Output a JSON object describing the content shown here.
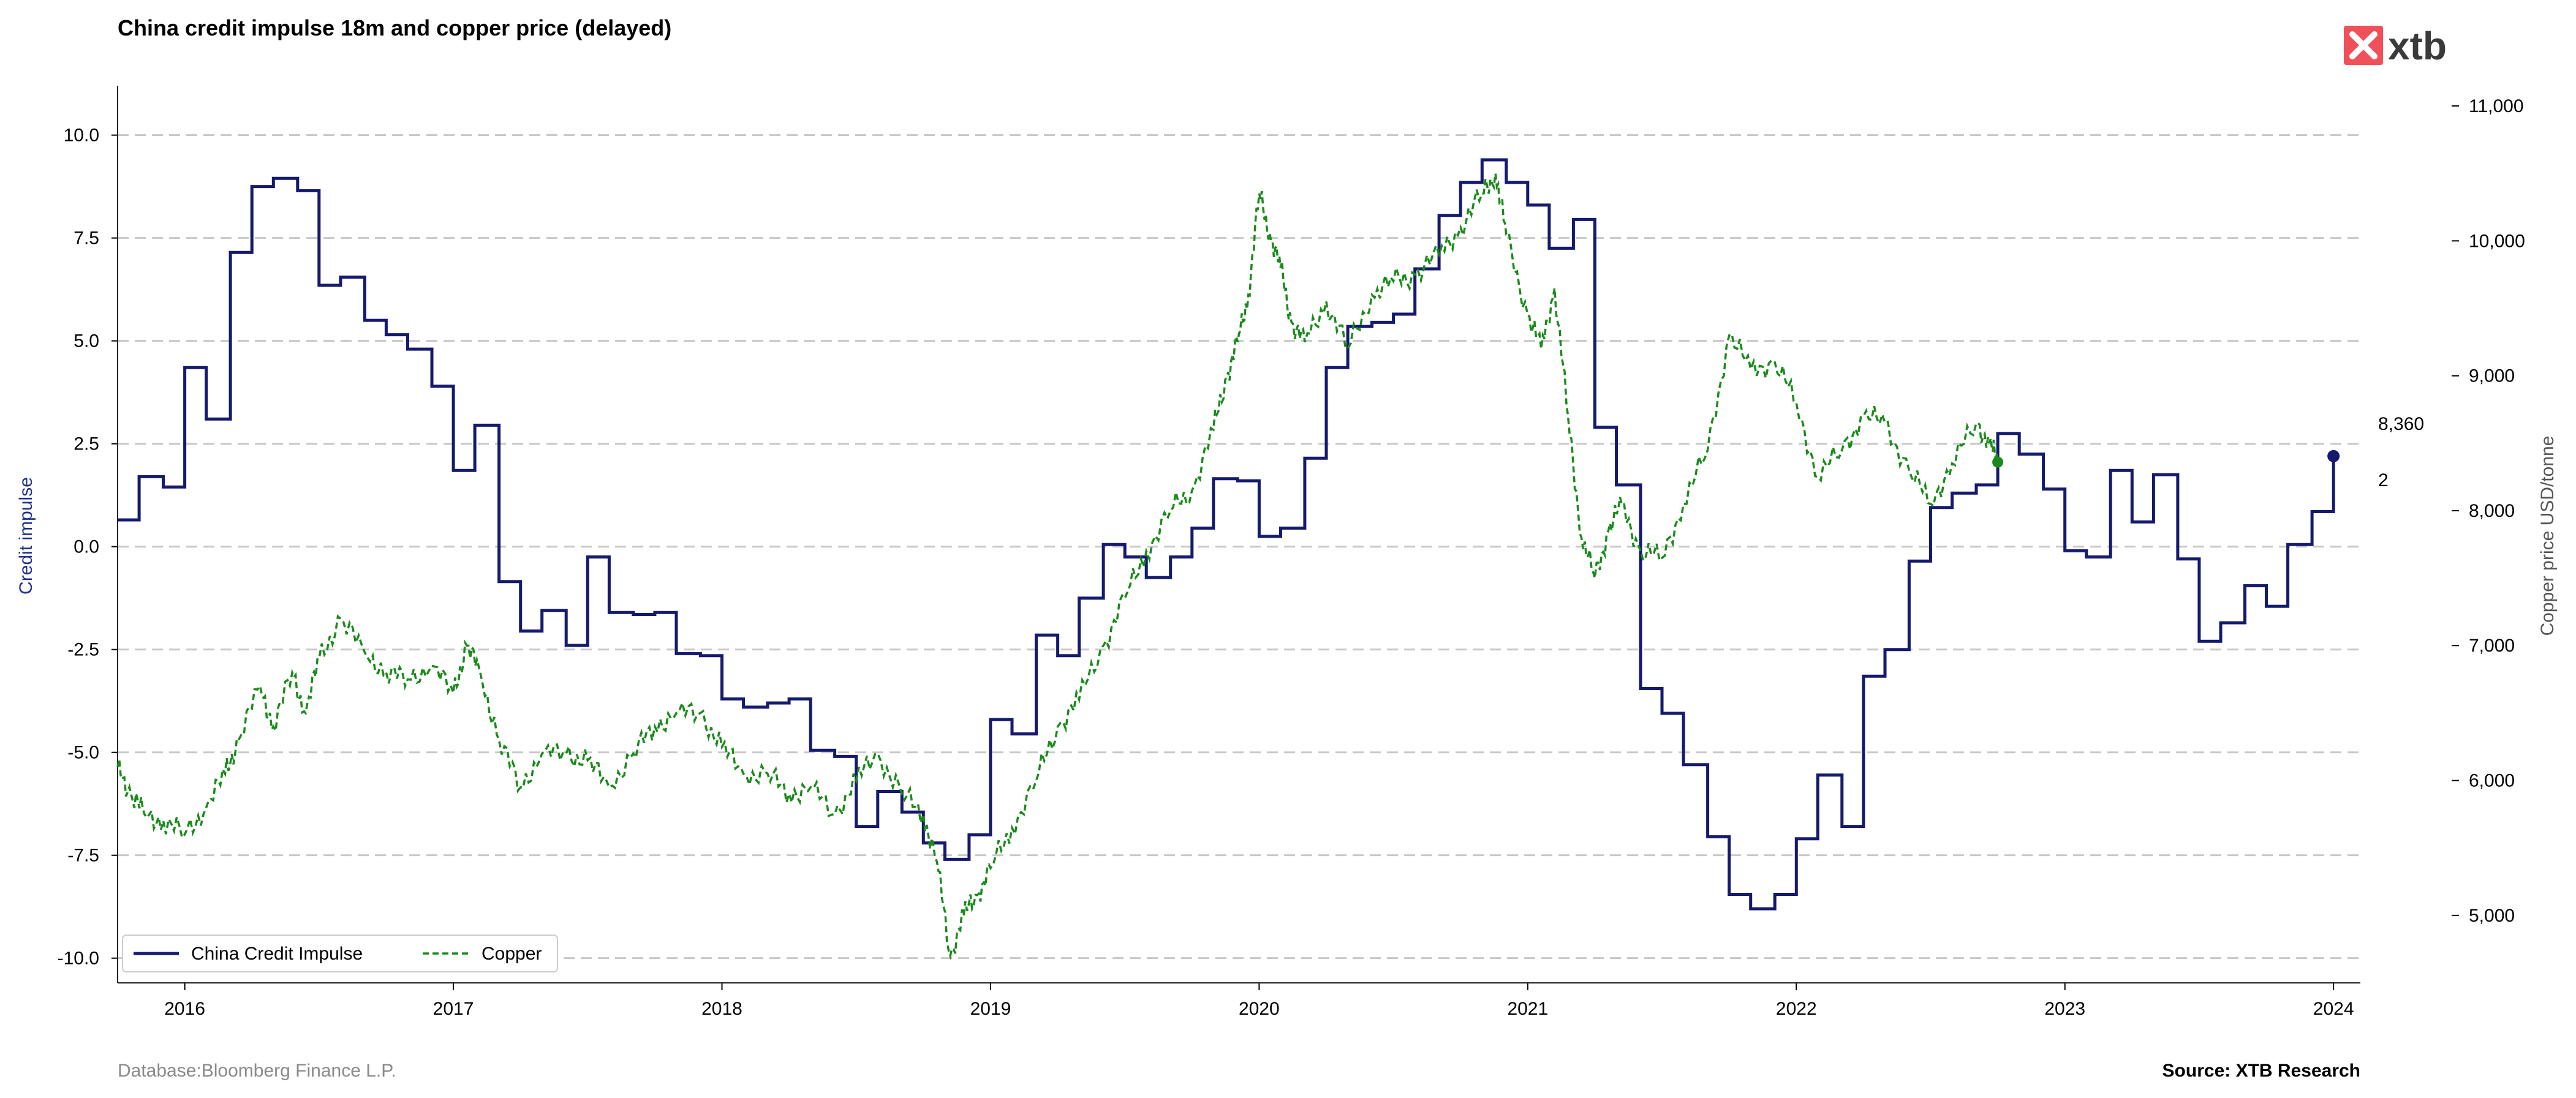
{
  "chart_data": {
    "type": "line",
    "title": "China credit impulse 18m and copper price (delayed)",
    "ylabel_left": "Credit impulse",
    "ylabel_right": "Copper price USD/tonne",
    "x_ticks": [
      "2016",
      "2017",
      "2018",
      "2019",
      "2020",
      "2021",
      "2022",
      "2023",
      "2024"
    ],
    "y_left_ticks": [
      "10.0",
      "7.5",
      "5.0",
      "2.5",
      "0.0",
      "-2.5",
      "-5.0",
      "-7.5",
      "-10.0"
    ],
    "y_right_ticks": [
      "11,000",
      "10,000",
      "9,000",
      "8,000",
      "7,000",
      "6,000",
      "5,000"
    ],
    "ylim_left": [
      -10.6,
      11.2
    ],
    "ylim_right": [
      4500,
      11150
    ],
    "xlim": [
      2015.75,
      2024.1
    ],
    "grid": "horizontal dashed",
    "legend_position": "bottom-left",
    "end_labels": {
      "copper": "8,360",
      "credit": "2"
    },
    "colors": {
      "credit": "#151a6e",
      "copper": "#1a8a1a",
      "grid": "#c8c8c8",
      "logo": "#f0505a"
    },
    "series": [
      {
        "name": "China Credit Impulse",
        "axis": "left",
        "style": "step-solid",
        "points": [
          [
            2015.75,
            0.65
          ],
          [
            2015.83,
            1.7
          ],
          [
            2015.92,
            1.45
          ],
          [
            2016.0,
            4.35
          ],
          [
            2016.08,
            3.1
          ],
          [
            2016.17,
            7.15
          ],
          [
            2016.25,
            8.75
          ],
          [
            2016.33,
            8.95
          ],
          [
            2016.42,
            8.65
          ],
          [
            2016.5,
            6.35
          ],
          [
            2016.58,
            6.55
          ],
          [
            2016.67,
            5.5
          ],
          [
            2016.75,
            5.15
          ],
          [
            2016.83,
            4.8
          ],
          [
            2016.92,
            3.9
          ],
          [
            2017.0,
            1.85
          ],
          [
            2017.08,
            2.95
          ],
          [
            2017.17,
            -0.85
          ],
          [
            2017.25,
            -2.05
          ],
          [
            2017.33,
            -1.55
          ],
          [
            2017.42,
            -2.4
          ],
          [
            2017.5,
            -0.25
          ],
          [
            2017.58,
            -1.6
          ],
          [
            2017.67,
            -1.65
          ],
          [
            2017.75,
            -1.6
          ],
          [
            2017.83,
            -2.6
          ],
          [
            2017.92,
            -2.65
          ],
          [
            2018.0,
            -3.7
          ],
          [
            2018.08,
            -3.9
          ],
          [
            2018.17,
            -3.8
          ],
          [
            2018.25,
            -3.7
          ],
          [
            2018.33,
            -4.95
          ],
          [
            2018.42,
            -5.1
          ],
          [
            2018.5,
            -6.8
          ],
          [
            2018.58,
            -5.95
          ],
          [
            2018.67,
            -6.45
          ],
          [
            2018.75,
            -7.2
          ],
          [
            2018.83,
            -7.6
          ],
          [
            2018.92,
            -7.0
          ],
          [
            2019.0,
            -4.2
          ],
          [
            2019.08,
            -4.55
          ],
          [
            2019.17,
            -2.15
          ],
          [
            2019.25,
            -2.65
          ],
          [
            2019.33,
            -1.25
          ],
          [
            2019.42,
            0.05
          ],
          [
            2019.5,
            -0.25
          ],
          [
            2019.58,
            -0.75
          ],
          [
            2019.67,
            -0.25
          ],
          [
            2019.75,
            0.45
          ],
          [
            2019.83,
            1.65
          ],
          [
            2019.92,
            1.6
          ],
          [
            2020.0,
            0.25
          ],
          [
            2020.08,
            0.45
          ],
          [
            2020.17,
            2.15
          ],
          [
            2020.25,
            4.35
          ],
          [
            2020.33,
            5.35
          ],
          [
            2020.42,
            5.45
          ],
          [
            2020.5,
            5.65
          ],
          [
            2020.58,
            6.75
          ],
          [
            2020.67,
            8.05
          ],
          [
            2020.75,
            8.85
          ],
          [
            2020.83,
            9.4
          ],
          [
            2020.92,
            8.85
          ],
          [
            2021.0,
            8.3
          ],
          [
            2021.08,
            7.25
          ],
          [
            2021.17,
            7.95
          ],
          [
            2021.25,
            2.9
          ],
          [
            2021.33,
            1.5
          ],
          [
            2021.42,
            -3.45
          ],
          [
            2021.5,
            -4.05
          ],
          [
            2021.58,
            -5.3
          ],
          [
            2021.67,
            -7.05
          ],
          [
            2021.75,
            -8.45
          ],
          [
            2021.83,
            -8.8
          ],
          [
            2021.92,
            -8.45
          ],
          [
            2022.0,
            -7.1
          ],
          [
            2022.08,
            -5.55
          ],
          [
            2022.17,
            -6.8
          ],
          [
            2022.25,
            -3.15
          ],
          [
            2022.33,
            -2.5
          ],
          [
            2022.42,
            -0.35
          ],
          [
            2022.5,
            0.95
          ],
          [
            2022.58,
            1.3
          ],
          [
            2022.67,
            1.5
          ],
          [
            2022.75,
            2.75
          ],
          [
            2022.83,
            2.25
          ],
          [
            2022.92,
            1.4
          ],
          [
            2023.0,
            -0.1
          ],
          [
            2023.08,
            -0.25
          ],
          [
            2023.17,
            1.85
          ],
          [
            2023.25,
            0.6
          ],
          [
            2023.33,
            1.75
          ],
          [
            2023.42,
            -0.3
          ],
          [
            2023.5,
            -2.3
          ],
          [
            2023.58,
            -1.85
          ],
          [
            2023.67,
            -0.95
          ],
          [
            2023.75,
            -1.45
          ],
          [
            2023.83,
            0.05
          ],
          [
            2023.92,
            0.85
          ],
          [
            2024.0,
            2.2
          ]
        ],
        "end": [
          2024.0,
          2.2
        ]
      },
      {
        "name": "Copper",
        "axis": "right",
        "style": "dashed",
        "points": [
          [
            2015.75,
            6100
          ],
          [
            2015.8,
            5900
          ],
          [
            2015.85,
            5750
          ],
          [
            2015.92,
            5700
          ],
          [
            2016.0,
            5600
          ],
          [
            2016.08,
            5800
          ],
          [
            2016.15,
            6050
          ],
          [
            2016.2,
            6300
          ],
          [
            2016.28,
            6700
          ],
          [
            2016.33,
            6400
          ],
          [
            2016.4,
            6800
          ],
          [
            2016.45,
            6500
          ],
          [
            2016.5,
            6900
          ],
          [
            2016.58,
            7200
          ],
          [
            2016.67,
            6950
          ],
          [
            2016.75,
            6800
          ],
          [
            2016.83,
            6750
          ],
          [
            2016.92,
            6850
          ],
          [
            2017.0,
            6650
          ],
          [
            2017.05,
            7000
          ],
          [
            2017.1,
            6800
          ],
          [
            2017.17,
            6300
          ],
          [
            2017.25,
            5950
          ],
          [
            2017.33,
            6200
          ],
          [
            2017.42,
            6200
          ],
          [
            2017.5,
            6150
          ],
          [
            2017.58,
            5950
          ],
          [
            2017.67,
            6200
          ],
          [
            2017.75,
            6400
          ],
          [
            2017.83,
            6500
          ],
          [
            2017.92,
            6500
          ],
          [
            2018.0,
            6250
          ],
          [
            2018.08,
            6050
          ],
          [
            2018.17,
            6050
          ],
          [
            2018.25,
            5900
          ],
          [
            2018.33,
            5950
          ],
          [
            2018.42,
            5750
          ],
          [
            2018.5,
            6000
          ],
          [
            2018.58,
            6200
          ],
          [
            2018.67,
            5900
          ],
          [
            2018.75,
            5750
          ],
          [
            2018.8,
            5400
          ],
          [
            2018.85,
            4700
          ],
          [
            2018.9,
            5000
          ],
          [
            2018.95,
            5150
          ],
          [
            2019.0,
            5350
          ],
          [
            2019.08,
            5650
          ],
          [
            2019.17,
            6000
          ],
          [
            2019.25,
            6400
          ],
          [
            2019.33,
            6600
          ],
          [
            2019.42,
            7000
          ],
          [
            2019.5,
            7350
          ],
          [
            2019.58,
            7700
          ],
          [
            2019.67,
            8000
          ],
          [
            2019.75,
            8150
          ],
          [
            2019.83,
            8600
          ],
          [
            2019.88,
            9000
          ],
          [
            2019.92,
            9250
          ],
          [
            2019.96,
            9600
          ],
          [
            2020.0,
            10350
          ],
          [
            2020.04,
            10050
          ],
          [
            2020.08,
            9800
          ],
          [
            2020.12,
            9400
          ],
          [
            2020.17,
            9250
          ],
          [
            2020.25,
            9550
          ],
          [
            2020.33,
            9200
          ],
          [
            2020.42,
            9600
          ],
          [
            2020.5,
            9700
          ],
          [
            2020.58,
            9750
          ],
          [
            2020.67,
            9900
          ],
          [
            2020.75,
            10100
          ],
          [
            2020.83,
            10350
          ],
          [
            2020.88,
            10500
          ],
          [
            2020.92,
            10050
          ],
          [
            2021.0,
            9450
          ],
          [
            2021.05,
            9200
          ],
          [
            2021.1,
            9650
          ],
          [
            2021.15,
            8700
          ],
          [
            2021.2,
            7800
          ],
          [
            2021.25,
            7500
          ],
          [
            2021.3,
            7850
          ],
          [
            2021.35,
            8050
          ],
          [
            2021.42,
            7700
          ],
          [
            2021.5,
            7650
          ],
          [
            2021.58,
            8050
          ],
          [
            2021.67,
            8450
          ],
          [
            2021.75,
            9300
          ],
          [
            2021.83,
            9050
          ],
          [
            2021.92,
            9100
          ],
          [
            2022.0,
            8800
          ],
          [
            2022.08,
            8250
          ],
          [
            2022.17,
            8450
          ],
          [
            2022.25,
            8700
          ],
          [
            2022.33,
            8650
          ],
          [
            2022.42,
            8300
          ],
          [
            2022.5,
            8050
          ],
          [
            2022.58,
            8350
          ],
          [
            2022.67,
            8650
          ],
          [
            2022.72,
            8500
          ],
          [
            2022.75,
            8360
          ]
        ],
        "end": [
          2022.75,
          8360
        ]
      }
    ]
  },
  "footer": {
    "left": "Database:Bloomberg Finance L.P.",
    "right": "Source: XTB Research"
  },
  "logo": {
    "text": "xtb",
    "icon": "xtb-logo-icon"
  }
}
